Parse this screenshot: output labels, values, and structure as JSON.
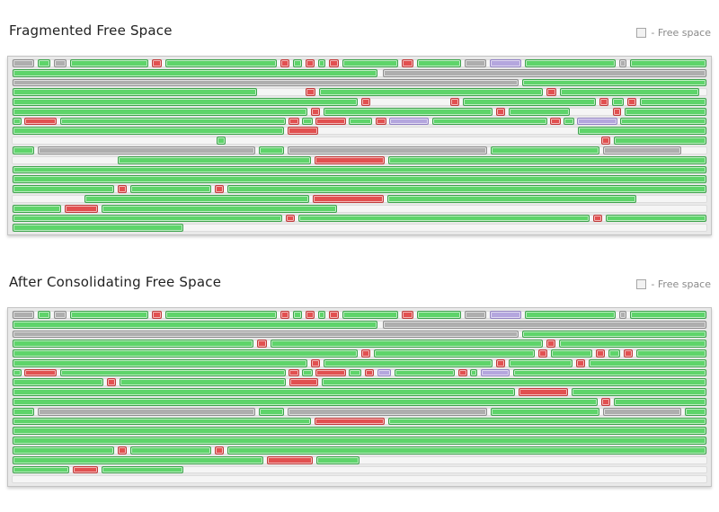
{
  "colors": {
    "allocated_green": "#5ed46a",
    "fragment_red": "#e25050",
    "system_gray": "#aeaeae",
    "special_purple": "#b4a6de",
    "free_track": "#f5f5f5",
    "panel_bg": "#e9e9e9"
  },
  "sections": [
    {
      "title": "Fragmented Free Space",
      "legend_label": "- Free space",
      "rows": [
        [
          [
            "gy",
            0,
            24
          ],
          [
            "gn",
            28,
            42
          ],
          [
            "gy",
            46,
            60
          ],
          [
            "gn",
            64,
            152
          ],
          [
            "rd",
            156,
            167
          ],
          [
            "gn",
            171,
            296
          ],
          [
            "rd",
            300,
            310
          ],
          [
            "gn",
            314,
            324
          ],
          [
            "rd",
            328,
            338
          ],
          [
            "gn",
            342,
            350
          ],
          [
            "rd",
            354,
            365
          ],
          [
            "gn",
            369,
            431
          ],
          [
            "rd",
            435,
            448
          ],
          [
            "gn",
            452,
            502
          ],
          [
            "gy",
            506,
            530
          ],
          [
            "pu",
            534,
            569
          ],
          [
            "gn",
            573,
            674
          ],
          [
            "gy",
            678,
            687
          ],
          [
            "gn",
            691,
            776
          ]
        ],
        [
          [
            "gn",
            0,
            408
          ],
          [
            "gy",
            414,
            776
          ]
        ],
        [
          [
            "gy",
            0,
            566
          ],
          [
            "gn",
            570,
            776
          ]
        ],
        [
          [
            "gn",
            0,
            273
          ],
          [
            "rd",
            328,
            339
          ],
          [
            "gn",
            343,
            593
          ],
          [
            "rd",
            597,
            608
          ],
          [
            "gn",
            612,
            768
          ]
        ],
        [
          [
            "gn",
            0,
            386
          ],
          [
            "rd",
            390,
            400
          ],
          [
            "rd",
            490,
            500
          ],
          [
            "gn",
            504,
            652
          ],
          [
            "rd",
            656,
            666
          ],
          [
            "gn",
            670,
            684
          ],
          [
            "rd",
            688,
            698
          ],
          [
            "gn",
            702,
            776
          ]
        ],
        [
          [
            "gn",
            0,
            330
          ],
          [
            "rd",
            334,
            344
          ],
          [
            "gn",
            348,
            537
          ],
          [
            "rd",
            541,
            551
          ],
          [
            "gn",
            555,
            623
          ],
          [
            "rd",
            671,
            681
          ],
          [
            "gn",
            685,
            776
          ]
        ],
        [
          [
            "gn",
            0,
            10
          ],
          [
            "rd",
            13,
            49
          ],
          [
            "gn",
            53,
            306
          ],
          [
            "rd",
            309,
            321
          ],
          [
            "gn",
            324,
            336
          ],
          [
            "rd",
            339,
            373
          ],
          [
            "gn",
            376,
            402
          ],
          [
            "rd",
            406,
            418
          ],
          [
            "pu",
            421,
            465
          ],
          [
            "gn",
            469,
            598
          ],
          [
            "rd",
            601,
            613
          ],
          [
            "gn",
            616,
            628
          ],
          [
            "pu",
            631,
            676
          ],
          [
            "gn",
            680,
            776
          ]
        ],
        [
          [
            "gn",
            0,
            304
          ],
          [
            "rd",
            308,
            342
          ],
          [
            "gn",
            632,
            776
          ]
        ],
        [
          [
            "gn",
            228,
            238
          ],
          [
            "rd",
            658,
            668
          ],
          [
            "gn",
            672,
            776
          ]
        ],
        [
          [
            "gn",
            0,
            24
          ],
          [
            "gy",
            28,
            271
          ],
          [
            "gn",
            275,
            304
          ],
          [
            "gy",
            308,
            531
          ],
          [
            "gn",
            535,
            656
          ],
          [
            "gy",
            660,
            748
          ]
        ],
        [
          [
            "gn",
            118,
            334
          ],
          [
            "rd",
            338,
            416
          ],
          [
            "gn",
            420,
            776
          ]
        ],
        [
          [
            "gn",
            0,
            776
          ]
        ],
        [
          [
            "gn",
            0,
            776
          ]
        ],
        [
          [
            "gn",
            0,
            114
          ],
          [
            "rd",
            118,
            128
          ],
          [
            "gn",
            132,
            222
          ],
          [
            "rd",
            226,
            236
          ],
          [
            "gn",
            240,
            776
          ]
        ],
        [
          [
            "gn",
            80,
            332
          ],
          [
            "rd",
            336,
            415
          ],
          [
            "gn",
            419,
            698
          ]
        ],
        [
          [
            "gn",
            0,
            54
          ],
          [
            "rd",
            58,
            96
          ],
          [
            "gn",
            100,
            363
          ]
        ],
        [
          [
            "gn",
            0,
            302
          ],
          [
            "rd",
            306,
            316
          ],
          [
            "gn",
            320,
            645
          ],
          [
            "rd",
            649,
            659
          ],
          [
            "gn",
            663,
            776
          ]
        ],
        [
          [
            "gn",
            0,
            191
          ]
        ]
      ]
    },
    {
      "title": "After Consolidating Free Space",
      "legend_label": "- Free space",
      "rows": [
        [
          [
            "gy",
            0,
            24
          ],
          [
            "gn",
            28,
            42
          ],
          [
            "gy",
            46,
            60
          ],
          [
            "gn",
            64,
            152
          ],
          [
            "rd",
            156,
            167
          ],
          [
            "gn",
            171,
            296
          ],
          [
            "rd",
            300,
            310
          ],
          [
            "gn",
            314,
            324
          ],
          [
            "rd",
            328,
            338
          ],
          [
            "gn",
            342,
            350
          ],
          [
            "rd",
            354,
            365
          ],
          [
            "gn",
            369,
            431
          ],
          [
            "rd",
            435,
            448
          ],
          [
            "gn",
            452,
            502
          ],
          [
            "gy",
            506,
            530
          ],
          [
            "pu",
            534,
            569
          ],
          [
            "gn",
            573,
            674
          ],
          [
            "gy",
            678,
            687
          ],
          [
            "gn",
            691,
            776
          ]
        ],
        [
          [
            "gn",
            0,
            408
          ],
          [
            "gy",
            414,
            776
          ]
        ],
        [
          [
            "gy",
            0,
            566
          ],
          [
            "gn",
            570,
            776
          ]
        ],
        [
          [
            "gn",
            0,
            269
          ],
          [
            "rd",
            273,
            284
          ],
          [
            "gn",
            288,
            593
          ],
          [
            "rd",
            597,
            607
          ],
          [
            "gn",
            611,
            776
          ]
        ],
        [
          [
            "gn",
            0,
            386
          ],
          [
            "rd",
            390,
            400
          ],
          [
            "gn",
            404,
            584
          ],
          [
            "rd",
            588,
            598
          ],
          [
            "gn",
            602,
            648
          ],
          [
            "rd",
            652,
            662
          ],
          [
            "gn",
            666,
            680
          ],
          [
            "rd",
            684,
            694
          ],
          [
            "gn",
            698,
            776
          ]
        ],
        [
          [
            "gn",
            0,
            330
          ],
          [
            "rd",
            334,
            344
          ],
          [
            "gn",
            348,
            537
          ],
          [
            "rd",
            541,
            551
          ],
          [
            "gn",
            555,
            626
          ],
          [
            "rd",
            630,
            640
          ],
          [
            "gn",
            644,
            776
          ]
        ],
        [
          [
            "gn",
            0,
            10
          ],
          [
            "rd",
            13,
            49
          ],
          [
            "gn",
            53,
            306
          ],
          [
            "rd",
            309,
            321
          ],
          [
            "gn",
            324,
            336
          ],
          [
            "rd",
            339,
            373
          ],
          [
            "gn",
            376,
            390
          ],
          [
            "rd",
            394,
            404
          ],
          [
            "pu",
            408,
            423
          ],
          [
            "gn",
            427,
            495
          ],
          [
            "rd",
            499,
            509
          ],
          [
            "gn",
            512,
            520
          ],
          [
            "pu",
            524,
            556
          ],
          [
            "gn",
            560,
            776
          ]
        ],
        [
          [
            "gn",
            0,
            102
          ],
          [
            "rd",
            106,
            116
          ],
          [
            "gn",
            120,
            306
          ],
          [
            "rd",
            310,
            342
          ],
          [
            "gn",
            346,
            776
          ]
        ],
        [
          [
            "gn",
            0,
            562
          ],
          [
            "rd",
            566,
            621
          ],
          [
            "gn",
            625,
            776
          ]
        ],
        [
          [
            "gn",
            0,
            654
          ],
          [
            "rd",
            658,
            668
          ],
          [
            "gn",
            672,
            776
          ]
        ],
        [
          [
            "gn",
            0,
            24
          ],
          [
            "gy",
            28,
            271
          ],
          [
            "gn",
            275,
            304
          ],
          [
            "gy",
            308,
            531
          ],
          [
            "gn",
            535,
            656
          ],
          [
            "gy",
            660,
            748
          ],
          [
            "gn",
            752,
            776
          ]
        ],
        [
          [
            "gn",
            0,
            334
          ],
          [
            "rd",
            338,
            416
          ],
          [
            "gn",
            420,
            776
          ]
        ],
        [
          [
            "gn",
            0,
            776
          ]
        ],
        [
          [
            "gn",
            0,
            776
          ]
        ],
        [
          [
            "gn",
            0,
            114
          ],
          [
            "rd",
            118,
            128
          ],
          [
            "gn",
            132,
            222
          ],
          [
            "rd",
            226,
            236
          ],
          [
            "gn",
            240,
            776
          ]
        ],
        [
          [
            "gn",
            0,
            280
          ],
          [
            "rd",
            284,
            336
          ],
          [
            "gn",
            340,
            388
          ]
        ],
        [
          [
            "gn",
            0,
            63
          ],
          [
            "rd",
            67,
            96
          ],
          [
            "gn",
            100,
            191
          ]
        ],
        []
      ]
    }
  ]
}
